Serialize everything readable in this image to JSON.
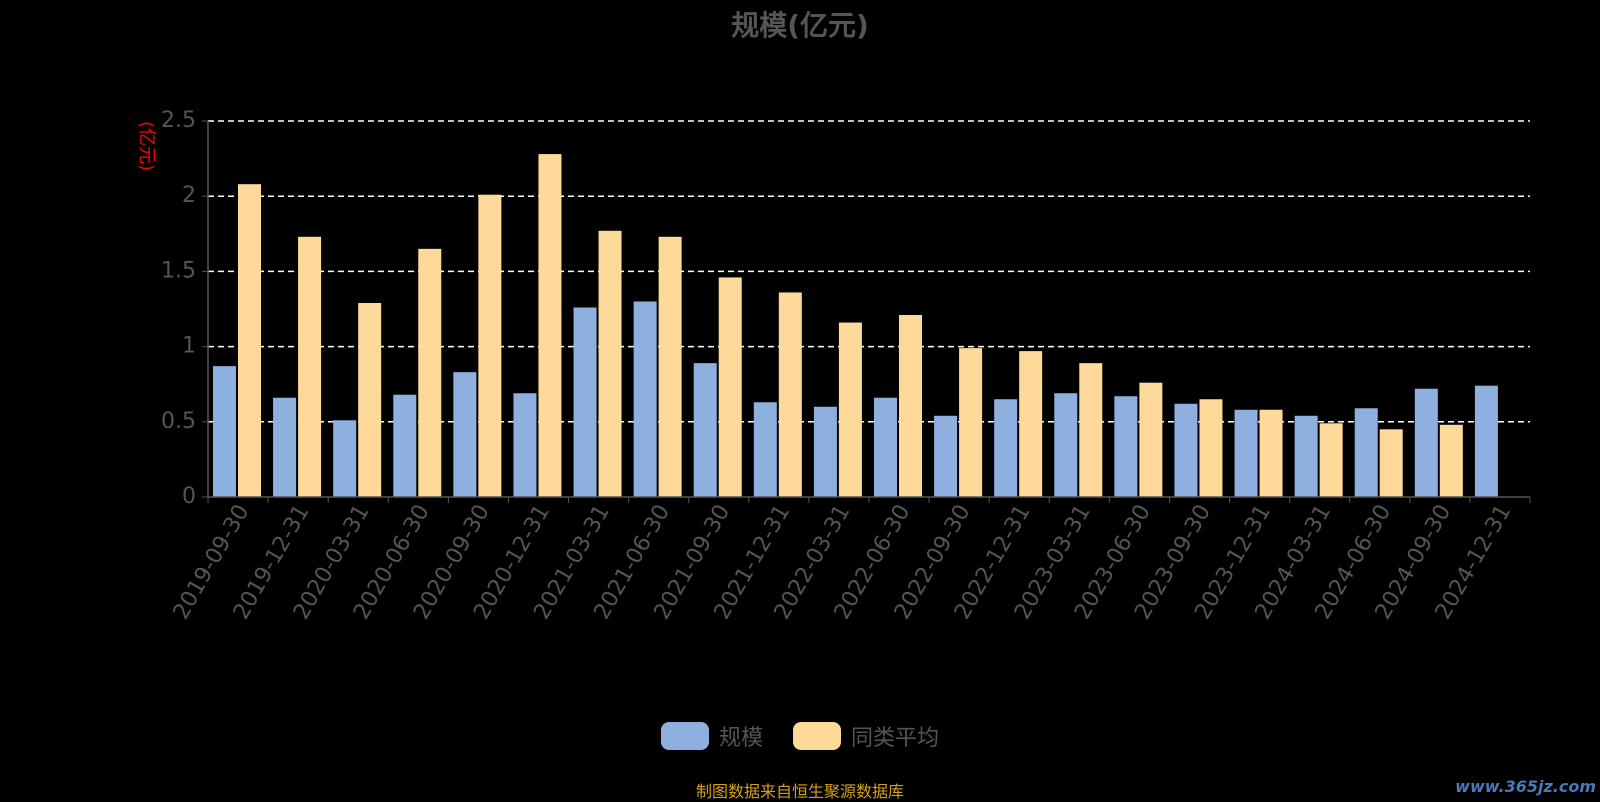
{
  "chart_data": {
    "type": "bar",
    "title": "规模(亿元)",
    "ylabel": "(亿元)",
    "xlabel": "",
    "ylim": [
      0,
      2.5
    ],
    "yticks": [
      "0",
      "0.5",
      "1",
      "1.5",
      "2",
      "2.5"
    ],
    "ytick_values": [
      0,
      0.5,
      1,
      1.5,
      2,
      2.5
    ],
    "grid": true,
    "legend_position": "bottom",
    "categories": [
      "2019-09-30",
      "2019-12-31",
      "2020-03-31",
      "2020-06-30",
      "2020-09-30",
      "2020-12-31",
      "2021-03-31",
      "2021-06-30",
      "2021-09-30",
      "2021-12-31",
      "2022-03-31",
      "2022-06-30",
      "2022-09-30",
      "2022-12-31",
      "2023-03-31",
      "2023-06-30",
      "2023-09-30",
      "2023-12-31",
      "2024-03-31",
      "2024-06-30",
      "2024-09-30",
      "2024-12-31"
    ],
    "series": [
      {
        "name": "规模",
        "color": "#8eb0de",
        "values": [
          0.87,
          0.66,
          0.51,
          0.68,
          0.83,
          0.69,
          1.26,
          1.3,
          0.89,
          0.63,
          0.6,
          0.66,
          0.54,
          0.65,
          0.69,
          0.67,
          0.62,
          0.58,
          0.54,
          0.59,
          0.72,
          0.74
        ]
      },
      {
        "name": "同类平均",
        "color": "#ffd99a",
        "values": [
          2.08,
          1.73,
          1.29,
          1.65,
          2.01,
          2.28,
          1.77,
          1.73,
          1.46,
          1.36,
          1.16,
          1.21,
          0.99,
          0.97,
          0.89,
          0.76,
          0.65,
          0.58,
          0.49,
          0.45,
          0.48,
          null
        ]
      }
    ]
  },
  "footer": {
    "source": "制图数据来自恒生聚源数据库",
    "watermark": "www.365jz.com"
  }
}
